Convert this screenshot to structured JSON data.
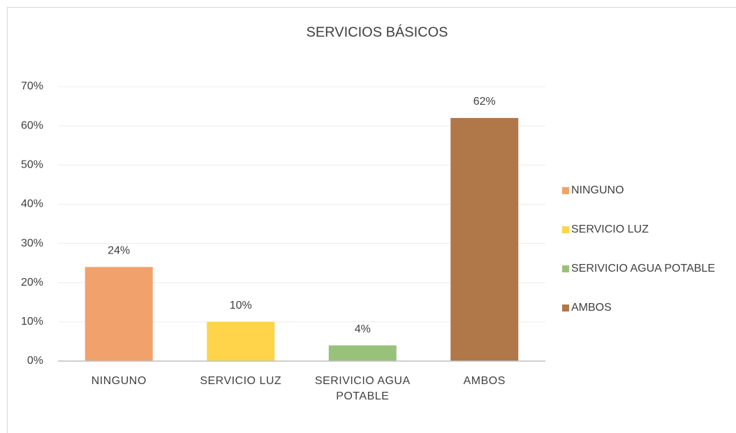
{
  "chart_data": {
    "type": "bar",
    "title": "SERVICIOS BÁSICOS",
    "categories": [
      "NINGUNO",
      "SERVICIO LUZ",
      "SERIVICIO AGUA POTABLE",
      "AMBOS"
    ],
    "values": [
      24,
      10,
      4,
      62
    ],
    "value_labels": [
      "24%",
      "10%",
      "4%",
      "62%"
    ],
    "colors": [
      "#f1a26c",
      "#ffd34a",
      "#98c27a",
      "#b07748"
    ],
    "ylim": [
      0,
      70
    ],
    "yticks": [
      {
        "value": 0,
        "label": "0%"
      },
      {
        "value": 10,
        "label": "10%"
      },
      {
        "value": 20,
        "label": "20%"
      },
      {
        "value": 30,
        "label": "30%"
      },
      {
        "value": 40,
        "label": "40%"
      },
      {
        "value": 50,
        "label": "50%"
      },
      {
        "value": 60,
        "label": "60%"
      },
      {
        "value": 70,
        "label": "70%"
      }
    ],
    "grid": true,
    "legend": "right"
  }
}
